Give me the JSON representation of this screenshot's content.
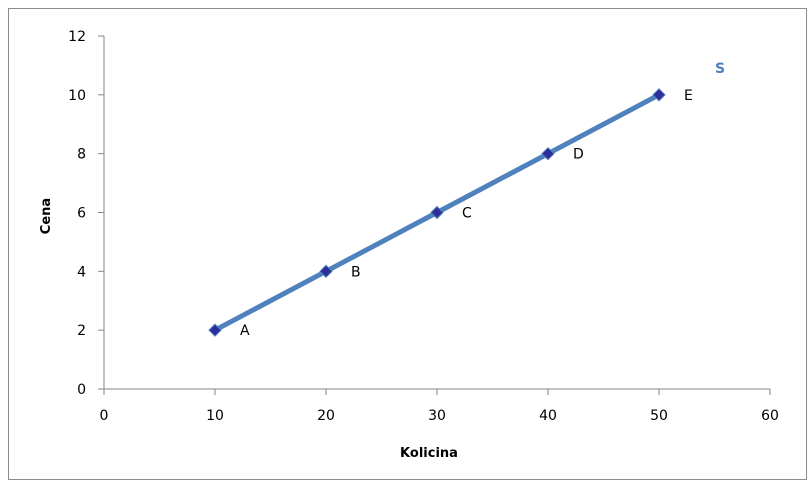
{
  "chart_data": {
    "type": "line",
    "xlabel": "Kolicina",
    "ylabel": "Cena",
    "xlim": [
      0,
      60
    ],
    "ylim": [
      0,
      12
    ],
    "xticks": [
      0,
      10,
      20,
      30,
      40,
      50,
      60
    ],
    "yticks": [
      0,
      2,
      4,
      6,
      8,
      10,
      12
    ],
    "grid": false,
    "series": [
      {
        "name": "S",
        "color": "#4f81bd",
        "marker_color": "#2e2e9a",
        "x": [
          10,
          20,
          30,
          40,
          50
        ],
        "y": [
          2,
          4,
          6,
          8,
          10
        ],
        "point_labels": [
          "A",
          "B",
          "C",
          "D",
          "E"
        ]
      }
    ]
  }
}
